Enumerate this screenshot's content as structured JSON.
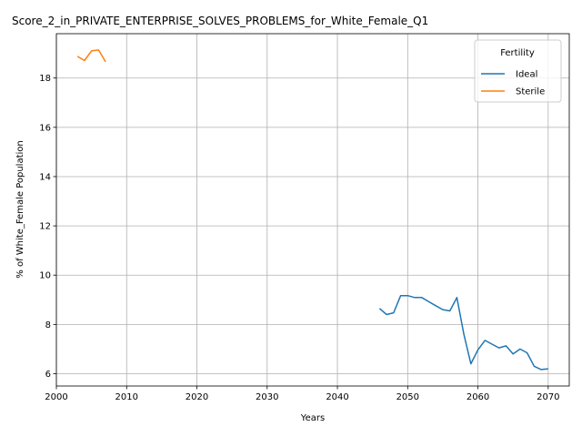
{
  "chart_data": {
    "type": "line",
    "title": "Score_2_in_PRIVATE_ENTERPRISE_SOLVES_PROBLEMS_for_White_Female_Q1",
    "xlabel": "Years",
    "ylabel": "% of White_Female Population",
    "xlim": [
      2000,
      2073
    ],
    "ylim": [
      5.5,
      19.8
    ],
    "xticks": [
      2000,
      2010,
      2020,
      2030,
      2040,
      2050,
      2060,
      2070
    ],
    "yticks": [
      6,
      8,
      10,
      12,
      14,
      16,
      18
    ],
    "grid": true,
    "legend": {
      "title": "Fertility",
      "placement": "top-right"
    },
    "series": [
      {
        "name": "Ideal",
        "color": "#1f77b4",
        "x": [
          2046,
          2047,
          2048,
          2049,
          2050,
          2051,
          2052,
          2053,
          2054,
          2055,
          2056,
          2057,
          2058,
          2059,
          2060,
          2061,
          2062,
          2063,
          2064,
          2065,
          2066,
          2067,
          2068,
          2069,
          2070
        ],
        "y": [
          8.65,
          8.4,
          8.47,
          9.17,
          9.17,
          9.09,
          9.09,
          8.92,
          8.76,
          8.6,
          8.55,
          9.09,
          7.6,
          6.4,
          6.97,
          7.35,
          7.2,
          7.05,
          7.13,
          6.8,
          7.0,
          6.85,
          6.3,
          6.17,
          6.2
        ]
      },
      {
        "name": "Sterile",
        "color": "#ff7f0e",
        "x": [
          2003,
          2004,
          2005,
          2006,
          2007
        ],
        "y": [
          18.88,
          18.71,
          19.1,
          19.14,
          18.66
        ]
      }
    ]
  }
}
